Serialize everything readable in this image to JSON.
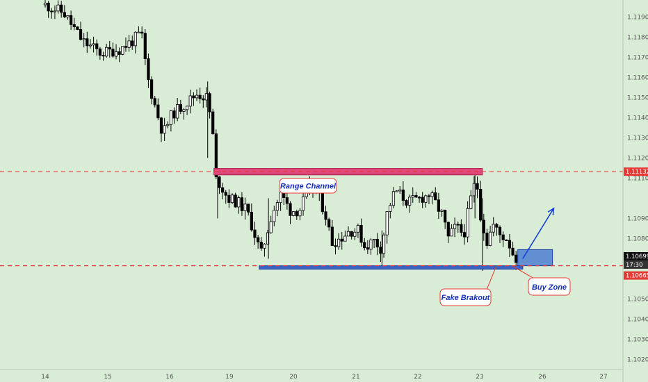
{
  "chart_data": {
    "type": "candlestick",
    "title": "",
    "xlabel": "",
    "ylabel": "",
    "x_ticks": [
      "14",
      "15",
      "16",
      "19",
      "20",
      "21",
      "22",
      "23",
      "26",
      "27"
    ],
    "y_ticks": [
      "1.11900",
      "1.11800",
      "1.11700",
      "1.11600",
      "1.11500",
      "1.11400",
      "1.11300",
      "1.11200",
      "1.11100",
      "1.10900",
      "1.10800",
      "1.10500",
      "1.10400",
      "1.10300",
      "1.10200"
    ],
    "ylim": [
      1.1015,
      1.1196
    ],
    "grid": false,
    "price_tags": {
      "resistance": "1.11132",
      "current_price": "1.10699",
      "countdown": "17:30",
      "support": "1.10665"
    },
    "levels": [
      {
        "name": "resistance",
        "value": 1.11132,
        "color": "#e53935"
      },
      {
        "name": "support",
        "value": 1.10665,
        "color": "#e53935"
      }
    ],
    "price_path": [
      [
        0,
        1.1196
      ],
      [
        0.3,
        1.1192
      ],
      [
        0.6,
        1.1178
      ],
      [
        0.9,
        1.1172
      ],
      [
        1.2,
        1.1174
      ],
      [
        1.4,
        1.1178
      ],
      [
        1.55,
        1.1182
      ],
      [
        1.65,
        1.116
      ],
      [
        1.75,
        1.1148
      ],
      [
        1.9,
        1.1132
      ],
      [
        2.05,
        1.1142
      ],
      [
        2.3,
        1.1148
      ],
      [
        2.45,
        1.1152
      ],
      [
        2.6,
        1.115
      ],
      [
        2.7,
        1.1136
      ],
      [
        2.72,
        1.111
      ],
      [
        2.8,
        1.1108
      ],
      [
        2.95,
        1.11
      ],
      [
        3.1,
        1.1098
      ],
      [
        3.25,
        1.1094
      ],
      [
        3.35,
        1.1085
      ],
      [
        3.48,
        1.1072
      ],
      [
        3.55,
        1.108
      ],
      [
        3.65,
        1.1092
      ],
      [
        3.8,
        1.1102
      ],
      [
        3.95,
        1.1094
      ],
      [
        4.1,
        1.1094
      ],
      [
        4.25,
        1.1105
      ],
      [
        4.4,
        1.1102
      ],
      [
        4.52,
        1.1092
      ],
      [
        4.62,
        1.1078
      ],
      [
        4.75,
        1.108
      ],
      [
        4.9,
        1.1084
      ],
      [
        5.05,
        1.1084
      ],
      [
        5.15,
        1.1076
      ],
      [
        5.3,
        1.1079
      ],
      [
        5.42,
        1.1075
      ],
      [
        5.52,
        1.1094
      ],
      [
        5.65,
        1.1104
      ],
      [
        5.85,
        1.1098
      ],
      [
        6.05,
        1.11
      ],
      [
        6.2,
        1.1102
      ],
      [
        6.4,
        1.1092
      ],
      [
        6.5,
        1.108
      ],
      [
        6.62,
        1.1086
      ],
      [
        6.75,
        1.1082
      ],
      [
        6.85,
        1.1098
      ],
      [
        6.95,
        1.111
      ],
      [
        7.02,
        1.1092
      ],
      [
        7.12,
        1.1078
      ],
      [
        7.22,
        1.1087
      ],
      [
        7.32,
        1.1082
      ],
      [
        7.45,
        1.108
      ],
      [
        7.55,
        1.1072
      ],
      [
        7.62,
        1.10695
      ]
    ],
    "candle_wicks": [
      {
        "start": 3.45,
        "end": 7.35,
        "amplitude": 0.00055
      },
      {
        "start": 0,
        "end": 2.7,
        "amplitude": 0.0007
      }
    ],
    "annotations": {
      "range_channel": "Range Channel",
      "fake_breakout": "Fake Brakout",
      "buy_zone": "Buy Zone",
      "resistance_zone": {
        "from_day": 2.72,
        "to_day": 7.05,
        "low": 1.11116,
        "high": 1.11148,
        "color": "#e0487a"
      },
      "support_zone": {
        "from_day": 3.45,
        "to_day": 7.7,
        "low": 1.10648,
        "high": 1.10665,
        "color": "#3a63c9"
      },
      "buy_box": {
        "from_day": 7.62,
        "to_day": 8.18,
        "low": 1.10665,
        "high": 1.10745,
        "color": "#3a6fd0"
      },
      "projection": {
        "from": [
          7.7,
          1.107
        ],
        "to": [
          8.2,
          1.1095
        ],
        "color": "#1a44d8"
      }
    },
    "colors": {
      "background": "#d9ecd6",
      "candles": "#000000",
      "label_text": "#1530b8",
      "callout_border": "#e53935"
    }
  }
}
